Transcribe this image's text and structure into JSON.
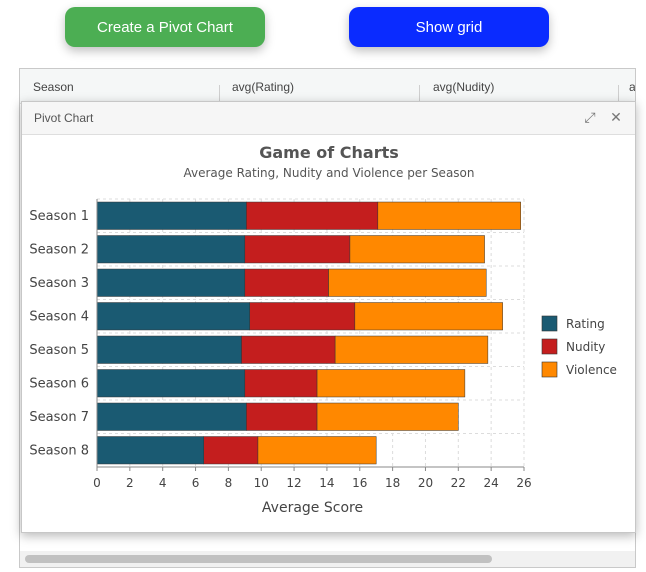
{
  "toolbar": {
    "pivot_label": "Create a Pivot Chart",
    "pivot_color": "#4cae53",
    "grid_label": "Show grid",
    "grid_color": "#0a2bff"
  },
  "grid": {
    "columns": [
      "Season",
      "avg(Rating)",
      "avg(Nudity)",
      "a"
    ]
  },
  "window": {
    "title": "Pivot Chart",
    "expand_icon": "expand-icon",
    "close_icon": "close-icon"
  },
  "chart_data": {
    "type": "bar",
    "orientation": "horizontal",
    "stacked": true,
    "title": "Game of Charts",
    "subtitle": "Average Rating, Nudity and Violence per Season",
    "xlabel": "Average Score",
    "ylabel": "",
    "xlim": [
      0,
      26
    ],
    "xticks": [
      0,
      2,
      4,
      6,
      8,
      10,
      12,
      14,
      16,
      18,
      20,
      22,
      24,
      26
    ],
    "grid": true,
    "legend_position": "right",
    "categories": [
      "Season 1",
      "Season 2",
      "Season 3",
      "Season 4",
      "Season 5",
      "Season 6",
      "Season 7",
      "Season 8"
    ],
    "series": [
      {
        "name": "Rating",
        "color": "#1a5a72",
        "values": [
          9.1,
          9.0,
          9.0,
          9.3,
          8.8,
          9.0,
          9.1,
          6.5
        ]
      },
      {
        "name": "Nudity",
        "color": "#c41e1e",
        "values": [
          8.0,
          6.4,
          5.1,
          6.4,
          5.7,
          4.4,
          4.3,
          3.3
        ]
      },
      {
        "name": "Violence",
        "color": "#ff8800",
        "values": [
          8.7,
          8.2,
          9.6,
          9.0,
          9.3,
          9.0,
          8.6,
          7.2
        ]
      }
    ]
  }
}
